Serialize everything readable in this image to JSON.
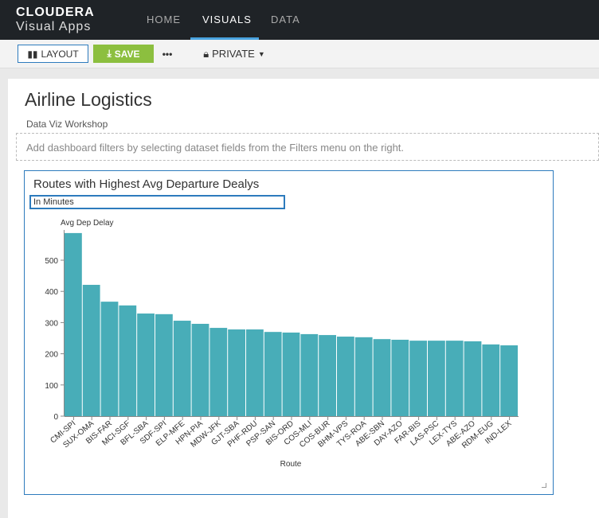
{
  "header": {
    "brand": "CLOUDERA",
    "product": "Visual Apps",
    "nav": [
      "HOME",
      "VISUALS",
      "DATA"
    ],
    "active": "VISUALS"
  },
  "toolbar": {
    "layout": "LAYOUT",
    "save": "SAVE",
    "more": "•••",
    "visibility": "PRIVATE"
  },
  "dashboard": {
    "title": "Airline Logistics",
    "subtitle": "Data Viz Workshop",
    "filters_hint": "Add dashboard filters by selecting dataset fields from the Filters menu on the right."
  },
  "visual": {
    "title": "Routes with Highest Avg Departure Dealys",
    "subtitle": "In Minutes"
  },
  "colors": {
    "bar": "#48adb8",
    "accent": "#2d7bbd",
    "save": "#8cbf3f"
  },
  "chart_data": {
    "type": "bar",
    "xlabel": "Route",
    "ylabel": "Avg Dep Delay",
    "ylim": [
      0,
      600
    ],
    "yticks": [
      0,
      100,
      200,
      300,
      400,
      500
    ],
    "categories": [
      "CMI-SPI",
      "SUX-OMA",
      "BIS-FAR",
      "MCI-SGF",
      "BFL-SBA",
      "SDF-SPI",
      "ELP-MFE",
      "HPN-PIA",
      "MDW-JFK",
      "GJT-SBA",
      "PHF-RDU",
      "PSP-SAN",
      "BIS-ORD",
      "COS-MLI",
      "COS-BUR",
      "BHM-VPS",
      "TYS-ROA",
      "ABE-SBN",
      "DAY-AZO",
      "FAR-BIS",
      "LAS-PSC",
      "LEX-TYS",
      "ABE-AZO",
      "RDM-EUG",
      "IND-LEX"
    ],
    "values": [
      587,
      421,
      367,
      355,
      329,
      327,
      306,
      296,
      283,
      278,
      278,
      270,
      268,
      263,
      260,
      255,
      253,
      247,
      245,
      242,
      242,
      242,
      240,
      230,
      227
    ]
  }
}
